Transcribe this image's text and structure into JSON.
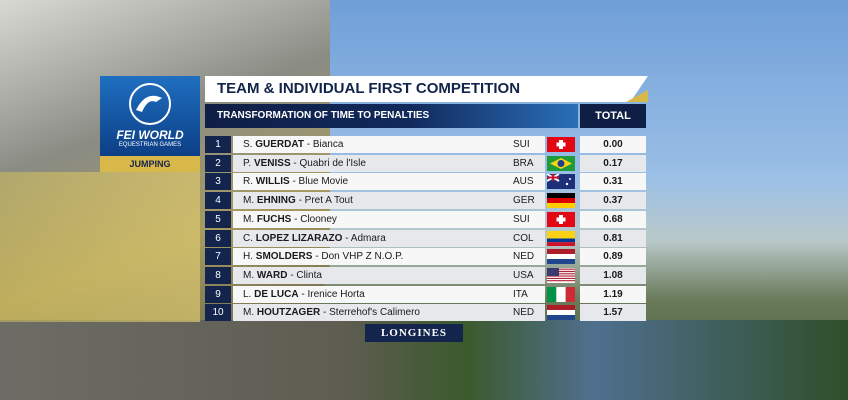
{
  "logo": {
    "brand": "FEI WORLD",
    "subtitle": "EQUESTRIAN GAMES",
    "discipline": "JUMPING"
  },
  "header": {
    "title": "TEAM & INDIVIDUAL FIRST COMPETITION",
    "subtitle": "TRANSFORMATION OF TIME TO PENALTIES",
    "total_label": "TOTAL"
  },
  "table": {
    "rows": [
      {
        "rank": 1,
        "initial": "S.",
        "surname": "GUERDAT",
        "horse": "- Bianca",
        "country": "SUI",
        "total": "0.00"
      },
      {
        "rank": 2,
        "initial": "P.",
        "surname": "VENISS",
        "horse": "- Quabri de l'Isle",
        "country": "BRA",
        "total": "0.17"
      },
      {
        "rank": 3,
        "initial": "R.",
        "surname": "WILLIS",
        "horse": "- Blue Movie",
        "country": "AUS",
        "total": "0.31"
      },
      {
        "rank": 4,
        "initial": "M.",
        "surname": "EHNING",
        "horse": "- Pret A Tout",
        "country": "GER",
        "total": "0.37"
      },
      {
        "rank": 5,
        "initial": "M.",
        "surname": "FUCHS",
        "horse": "- Clooney",
        "country": "SUI",
        "total": "0.68"
      },
      {
        "rank": 6,
        "initial": "C.",
        "surname": "LOPEZ LIZARAZO",
        "horse": "- Admara",
        "country": "COL",
        "total": "0.81"
      },
      {
        "rank": 7,
        "initial": "H.",
        "surname": "SMOLDERS",
        "horse": "- Don VHP Z N.O.P.",
        "country": "NED",
        "total": "0.89"
      },
      {
        "rank": 8,
        "initial": "M.",
        "surname": "WARD",
        "horse": "- Clinta",
        "country": "USA",
        "total": "1.08"
      },
      {
        "rank": 9,
        "initial": "L.",
        "surname": "DE LUCA",
        "horse": "- Irenice Horta",
        "country": "ITA",
        "total": "1.19"
      },
      {
        "rank": 10,
        "initial": "M.",
        "surname": "HOUTZAGER",
        "horse": "- Sterrehof's Calimero",
        "country": "NED",
        "total": "1.57"
      }
    ]
  },
  "sponsor": "LONGINES"
}
